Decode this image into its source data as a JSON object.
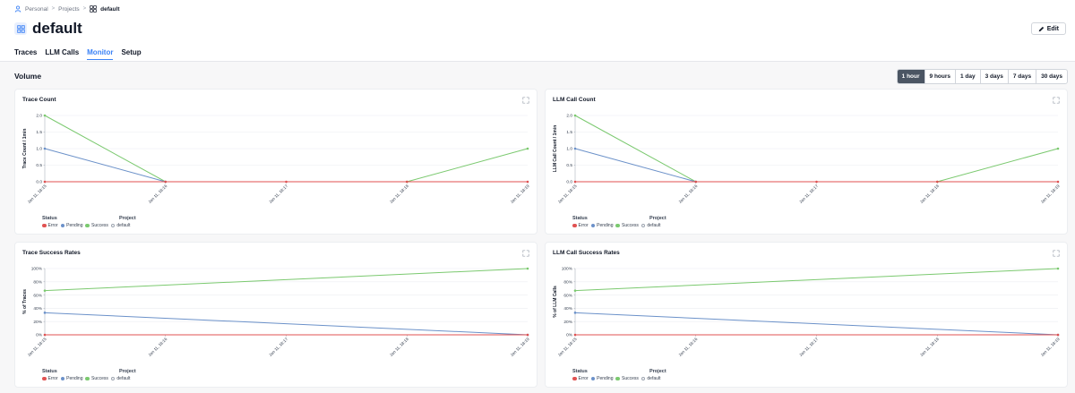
{
  "breadcrumb": {
    "personal": "Personal",
    "projects": "Projects",
    "current": "default",
    "sep": ">"
  },
  "page": {
    "title": "default"
  },
  "toolbar": {
    "edit_label": "Edit"
  },
  "tabs": [
    {
      "label": "Traces"
    },
    {
      "label": "LLM Calls"
    },
    {
      "label": "Monitor",
      "active": true
    },
    {
      "label": "Setup"
    }
  ],
  "section": {
    "title": "Volume"
  },
  "time_ranges": [
    {
      "label": "1 hour",
      "active": true
    },
    {
      "label": "9 hours"
    },
    {
      "label": "1 day"
    },
    {
      "label": "3 days"
    },
    {
      "label": "7 days"
    },
    {
      "label": "30 days"
    }
  ],
  "colors": {
    "error": "#e05252",
    "pending": "#6b91c9",
    "success": "#7bc96f",
    "accent": "#3b82f6"
  },
  "legend": {
    "status_title": "Status",
    "project_title": "Project",
    "items": [
      "Error",
      "Pending",
      "Success"
    ],
    "project_item": "default"
  },
  "charts": [
    {
      "title": "Trace Count",
      "ylabel": "Trace Count / 1min",
      "type": "line",
      "x": [
        "Jan 11, 18:15",
        "Jan 11, 18:16",
        "Jan 11, 18:17",
        "Jan 11, 18:18",
        "Jan 11, 18:19"
      ],
      "yticks": [
        "0.0",
        "0.5",
        "1.0",
        "1.5",
        "2.0"
      ],
      "ylim": [
        0,
        2
      ],
      "series": [
        {
          "name": "Error",
          "points": [
            [
              0,
              0
            ],
            [
              4,
              0
            ]
          ],
          "markers": [
            0,
            1,
            2,
            3,
            4
          ],
          "values": [
            0,
            0,
            0,
            0,
            0
          ]
        },
        {
          "name": "Pending",
          "points": [
            [
              0,
              1
            ],
            [
              1,
              0
            ]
          ],
          "markers": [
            0,
            1
          ],
          "values": [
            1,
            0
          ]
        },
        {
          "name": "Success",
          "points": [
            [
              0,
              2
            ],
            [
              1,
              0
            ],
            [
              3,
              0
            ],
            [
              4,
              1
            ]
          ],
          "markers": [
            0,
            1,
            3,
            4
          ],
          "values": [
            2,
            0,
            0,
            1
          ]
        }
      ]
    },
    {
      "title": "LLM Call Count",
      "ylabel": "LLM Call Count / 1min",
      "type": "line",
      "x": [
        "Jan 11, 18:15",
        "Jan 11, 18:16",
        "Jan 11, 18:17",
        "Jan 11, 18:18",
        "Jan 11, 18:19"
      ],
      "yticks": [
        "0.0",
        "0.5",
        "1.0",
        "1.5",
        "2.0"
      ],
      "ylim": [
        0,
        2
      ],
      "series": [
        {
          "name": "Error",
          "points": [
            [
              0,
              0
            ],
            [
              4,
              0
            ]
          ],
          "markers": [
            0,
            1,
            2,
            3,
            4
          ]
        },
        {
          "name": "Pending",
          "points": [
            [
              0,
              1
            ],
            [
              1,
              0
            ]
          ],
          "markers": [
            0,
            1
          ]
        },
        {
          "name": "Success",
          "points": [
            [
              0,
              2
            ],
            [
              1,
              0
            ],
            [
              3,
              0
            ],
            [
              4,
              1
            ]
          ],
          "markers": [
            0,
            1,
            3,
            4
          ]
        }
      ]
    },
    {
      "title": "Trace Success Rates",
      "ylabel": "% of Traces",
      "type": "line",
      "x": [
        "Jan 11, 18:15",
        "Jan 11, 18:16",
        "Jan 11, 18:17",
        "Jan 11, 18:18",
        "Jan 11, 18:19"
      ],
      "yticks": [
        "0%",
        "20%",
        "40%",
        "60%",
        "80%",
        "100%"
      ],
      "ylim": [
        0,
        100
      ],
      "series": [
        {
          "name": "Error",
          "points": [
            [
              0,
              0
            ],
            [
              4,
              0
            ]
          ],
          "markers": [
            0,
            4
          ]
        },
        {
          "name": "Pending",
          "points": [
            [
              0,
              33.3
            ],
            [
              4,
              0
            ]
          ],
          "markers": [
            0,
            4
          ]
        },
        {
          "name": "Success",
          "points": [
            [
              0,
              66.7
            ],
            [
              4,
              100
            ]
          ],
          "markers": [
            0,
            4
          ]
        }
      ]
    },
    {
      "title": "LLM Call Success Rates",
      "ylabel": "% of LLM Calls",
      "type": "line",
      "x": [
        "Jan 11, 18:15",
        "Jan 11, 18:16",
        "Jan 11, 18:17",
        "Jan 11, 18:18",
        "Jan 11, 18:19"
      ],
      "yticks": [
        "0%",
        "20%",
        "40%",
        "60%",
        "80%",
        "100%"
      ],
      "ylim": [
        0,
        100
      ],
      "series": [
        {
          "name": "Error",
          "points": [
            [
              0,
              0
            ],
            [
              4,
              0
            ]
          ],
          "markers": [
            0,
            4
          ]
        },
        {
          "name": "Pending",
          "points": [
            [
              0,
              33.3
            ],
            [
              4,
              0
            ]
          ],
          "markers": [
            0,
            4
          ]
        },
        {
          "name": "Success",
          "points": [
            [
              0,
              66.7
            ],
            [
              4,
              100
            ]
          ],
          "markers": [
            0,
            4
          ]
        }
      ]
    }
  ],
  "chart_data": [
    {
      "type": "line",
      "title": "Trace Count",
      "ylabel": "Trace Count / 1min",
      "x": [
        "Jan 11, 18:15",
        "Jan 11, 18:16",
        "Jan 11, 18:17",
        "Jan 11, 18:18",
        "Jan 11, 18:19"
      ],
      "ylim": [
        0,
        2
      ],
      "series": [
        {
          "name": "Error",
          "values": [
            0,
            0,
            0,
            0,
            0
          ]
        },
        {
          "name": "Pending",
          "values": [
            1,
            0,
            null,
            null,
            null
          ]
        },
        {
          "name": "Success",
          "values": [
            2,
            0,
            null,
            0,
            1
          ]
        }
      ]
    },
    {
      "type": "line",
      "title": "LLM Call Count",
      "ylabel": "LLM Call Count / 1min",
      "x": [
        "Jan 11, 18:15",
        "Jan 11, 18:16",
        "Jan 11, 18:17",
        "Jan 11, 18:18",
        "Jan 11, 18:19"
      ],
      "ylim": [
        0,
        2
      ],
      "series": [
        {
          "name": "Error",
          "values": [
            0,
            0,
            0,
            0,
            0
          ]
        },
        {
          "name": "Pending",
          "values": [
            1,
            0,
            null,
            null,
            null
          ]
        },
        {
          "name": "Success",
          "values": [
            2,
            0,
            null,
            0,
            1
          ]
        }
      ]
    },
    {
      "type": "line",
      "title": "Trace Success Rates",
      "ylabel": "% of Traces",
      "x": [
        "Jan 11, 18:15",
        "Jan 11, 18:19"
      ],
      "ylim": [
        0,
        100
      ],
      "series": [
        {
          "name": "Error",
          "values": [
            0,
            0
          ]
        },
        {
          "name": "Pending",
          "values": [
            33.3,
            0
          ]
        },
        {
          "name": "Success",
          "values": [
            66.7,
            100
          ]
        }
      ]
    },
    {
      "type": "line",
      "title": "LLM Call Success Rates",
      "ylabel": "% of LLM Calls",
      "x": [
        "Jan 11, 18:15",
        "Jan 11, 18:19"
      ],
      "ylim": [
        0,
        100
      ],
      "series": [
        {
          "name": "Error",
          "values": [
            0,
            0
          ]
        },
        {
          "name": "Pending",
          "values": [
            33.3,
            0
          ]
        },
        {
          "name": "Success",
          "values": [
            66.7,
            100
          ]
        }
      ]
    }
  ]
}
